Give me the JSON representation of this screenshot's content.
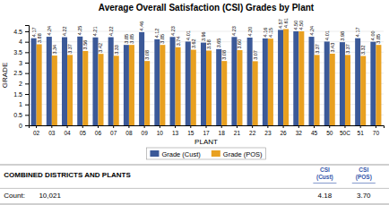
{
  "chart_data": {
    "type": "bar",
    "title": "Average Overall Satisfaction (CSI) Grades by Plant",
    "x_label": "PLANT",
    "y_label": "GRADE",
    "categories": [
      "02",
      "03",
      "04",
      "05",
      "06",
      "07",
      "08",
      "09",
      "10",
      "13",
      "15",
      "17",
      "18",
      "21",
      "22",
      "23",
      "26",
      "32",
      "45",
      "50",
      "50C",
      "51",
      "70"
    ],
    "series": [
      {
        "name": "Grade (Cust)",
        "color": "#3B5998",
        "values": [
          4.17,
          4.24,
          4.22,
          4.25,
          4.21,
          4.22,
          3.85,
          4.46,
          4.12,
          4.23,
          4.01,
          3.96,
          3.65,
          4.23,
          4.2,
          4.16,
          4.57,
          4.5,
          4.24,
          4.01,
          3.98,
          4.17,
          4.0
        ],
        "value_labels": [
          "4.17",
          "4.24",
          "4.22",
          "4.25",
          "4.21",
          "4.22",
          "3.85",
          "4.46",
          "4.12",
          "4.23",
          "4.01",
          "3.96",
          "3.65",
          "4.23",
          "4.20",
          "4.16",
          "4.57",
          "4.50",
          "4.24",
          "4.01",
          "3.98",
          "4.17",
          "4.00"
        ]
      },
      {
        "name": "Grade (POS)",
        "color": "#E8A020",
        "values": [
          3.88,
          3.34,
          3.37,
          3.56,
          3.42,
          3.33,
          3.85,
          3.08,
          3.85,
          3.74,
          3.62,
          3.58,
          3.08,
          3.6,
          3.07,
          4.15,
          4.61,
          4.5,
          3.37,
          3.43,
          3.37,
          3.32,
          3.85
        ],
        "value_labels": [
          "3.88",
          "3.34",
          "3.37",
          "3.56",
          "3.42",
          "3.33",
          "3.85",
          "3.08",
          "3.85",
          "3.74",
          "3.62",
          "3.58",
          "3.08",
          "3.60",
          "3.07",
          "4.15",
          "4.61",
          "4.50",
          "3.37",
          "3.43",
          "3.37",
          "3.32",
          "3.85"
        ]
      }
    ],
    "ylim": [
      0,
      4.8
    ],
    "yticks": [
      0,
      0.5,
      1,
      1.5,
      2,
      2.5,
      3,
      3.5,
      4,
      4.5
    ],
    "grid": true,
    "legend": "bottom",
    "data_labels": true,
    "annotations": [
      "COMBINED DISTRICTS AND PLANTS",
      "CSI",
      "(Cust)",
      "CSI",
      "(POS)",
      "Count:",
      "10,021",
      "4.18",
      "3.70"
    ]
  }
}
